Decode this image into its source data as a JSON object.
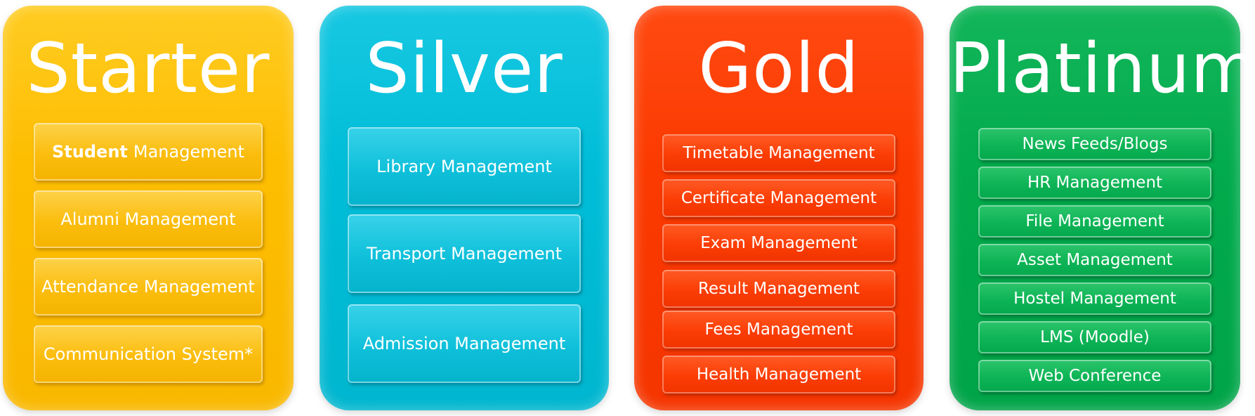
{
  "plans": {
    "starter": {
      "title": "Starter",
      "color": "#fdbd00",
      "items": [
        {
          "bold": "Student",
          "label": "Management"
        },
        {
          "label": "Alumni Management"
        },
        {
          "label": "Attendance Management"
        },
        {
          "label": "Communication System*"
        }
      ]
    },
    "silver": {
      "title": "Silver",
      "color": "#00bdd7",
      "items": [
        {
          "label": "Library Management"
        },
        {
          "label": "Transport Management"
        },
        {
          "label": "Admission Management"
        }
      ]
    },
    "gold": {
      "title": "Gold",
      "color": "#fb3a00",
      "items": [
        {
          "label": "Timetable Management"
        },
        {
          "label": "Certificate Management"
        },
        {
          "label": "Exam Management"
        },
        {
          "label": "Result Management"
        },
        {
          "label": "Fees Management"
        },
        {
          "label": "Health Management"
        }
      ]
    },
    "platinum": {
      "title": "Platinum",
      "color": "#02ab4d",
      "items": [
        {
          "label": "News Feeds/Blogs"
        },
        {
          "label": "HR Management"
        },
        {
          "label": "File Management"
        },
        {
          "label": "Asset Management"
        },
        {
          "label": "Hostel Management"
        },
        {
          "label": "LMS (Moodle)"
        },
        {
          "label": "Web Conference"
        }
      ]
    }
  }
}
